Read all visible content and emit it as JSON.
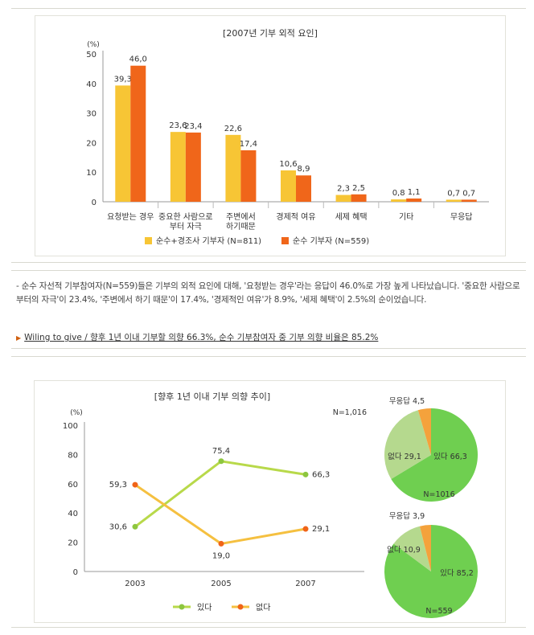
{
  "chart_data": [
    {
      "type": "bar",
      "title": "[2007년 기부 외적 요인]",
      "unit": "(%)",
      "ylim": [
        0,
        50
      ],
      "yticks": [
        0,
        10,
        20,
        30,
        40,
        50
      ],
      "categories": [
        [
          "요청받는 경우"
        ],
        [
          "중요한 사람으로",
          "부터 자극"
        ],
        [
          "주변에서",
          "하기때문"
        ],
        [
          "경제적 여유"
        ],
        [
          "세제 혜택"
        ],
        [
          "기타"
        ],
        [
          "무응답"
        ]
      ],
      "series": [
        {
          "name": "순수+경조사 기부자 (N=811)",
          "color": "#f7c535",
          "values": [
            39.3,
            23.6,
            22.6,
            10.6,
            2.3,
            0.8,
            0.7
          ],
          "labels": [
            "39,3",
            "23,6",
            "22,6",
            "10,6",
            "2,3",
            "0,8",
            "0,7"
          ]
        },
        {
          "name": "순수 기부자 (N=559)",
          "color": "#f0661a",
          "values": [
            46.0,
            23.4,
            17.4,
            8.9,
            2.5,
            1.1,
            0.7
          ],
          "labels": [
            "46,0",
            "23,4",
            "17,4",
            "8,9",
            "2,5",
            "1,1",
            "0,7"
          ]
        }
      ]
    },
    {
      "type": "line",
      "title": "[향후 1년 이내 기부 의향 추이]",
      "unit": "(%)",
      "note": "N=1,016",
      "ylim": [
        0,
        100
      ],
      "yticks": [
        0,
        20,
        40,
        60,
        80,
        100
      ],
      "x": [
        "2003",
        "2005",
        "2007"
      ],
      "series": [
        {
          "name": "있다",
          "color": "#b8d94a",
          "marker": "#8dc63f",
          "values": [
            30.6,
            75.4,
            66.3
          ],
          "labels": [
            "30,6",
            "75,4",
            "66,3"
          ]
        },
        {
          "name": "없다",
          "color": "#f5c040",
          "marker": "#f06418",
          "values": [
            59.3,
            19.0,
            29.1
          ],
          "labels": [
            "59,3",
            "19,0",
            "29,1"
          ]
        }
      ]
    },
    {
      "type": "pie",
      "n_label": "N=1016",
      "slices": [
        {
          "name": "있다",
          "value": 66.3,
          "label": "있다 66,3",
          "color": "#6fcf50"
        },
        {
          "name": "없다",
          "value": 29.1,
          "label": "없다 29,1",
          "color": "#b5d98e"
        },
        {
          "name": "무응답",
          "value": 4.5,
          "label": "무응답 4,5",
          "color": "#f4a23c"
        }
      ]
    },
    {
      "type": "pie",
      "n_label": "N=559",
      "slices": [
        {
          "name": "있다",
          "value": 85.2,
          "label": "있다 85,2",
          "color": "#6fcf50"
        },
        {
          "name": "없다",
          "value": 10.9,
          "label": "없다 10,9",
          "color": "#b5d98e"
        },
        {
          "name": "무응답",
          "value": 3.9,
          "label": "무응답 3,9",
          "color": "#f4a23c"
        }
      ]
    }
  ],
  "text": {
    "paragraph": "- 순수 자선적 기부참여자(N=559)들은 기부의 외적 요인에 대해, '요청받는 경우'라는 응답이 46.0%로 가장 높게 나타났습니다. '중요한 사람으로부터의 자극'이 23.4%, '주변에서 하기 때문'이 17.4%, '경제적인 여유'가 8.9%, '세제 혜택'이 2.5%의 순이었습니다.",
    "link": "Wiling to give / 향후 1년 이내 기부할 의향 66.3%, 순수 기부참여자 중 기부 의향 비율은 85.2%"
  },
  "colors": {
    "divider": "#d9d9d0",
    "panel_border": "#e2e2da",
    "link_arrow": "#d06010"
  }
}
